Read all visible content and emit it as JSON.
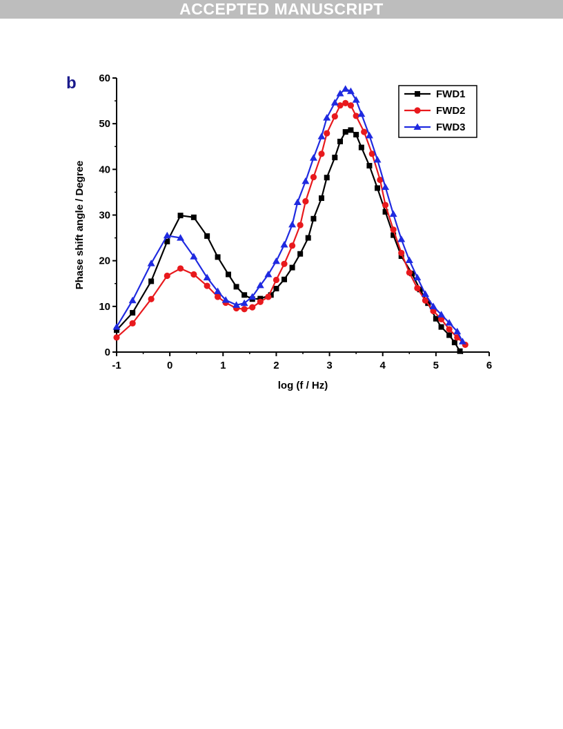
{
  "header": {
    "banner": "ACCEPTED MANUSCRIPT"
  },
  "colors": {
    "banner_bg": "#bdbdbd",
    "panel_letter": "#1a1a8c"
  },
  "chart_data": {
    "type": "line",
    "panel_label": "b",
    "xlabel": "log (f / Hz)",
    "ylabel": "Phase shift angle / Degree",
    "xlim": [
      -1,
      6
    ],
    "ylim": [
      0,
      60
    ],
    "xticks": [
      "-1",
      "0",
      "1",
      "2",
      "3",
      "4",
      "5",
      "6"
    ],
    "yticks": [
      "0",
      "10",
      "20",
      "30",
      "40",
      "50",
      "60"
    ],
    "grid": false,
    "legend_position": "top-right",
    "series": [
      {
        "name": "FWD1",
        "color": "#000000",
        "marker": "square",
        "x": [
          -1.0,
          -0.7,
          -0.35,
          -0.05,
          0.2,
          0.45,
          0.7,
          0.9,
          1.1,
          1.25,
          1.4,
          1.55,
          1.7,
          1.9,
          2.0,
          2.15,
          2.3,
          2.45,
          2.6,
          2.7,
          2.85,
          2.95,
          3.1,
          3.2,
          3.3,
          3.4,
          3.5,
          3.6,
          3.75,
          3.9,
          4.05,
          4.2,
          4.35,
          4.55,
          4.7,
          4.85,
          5.0,
          5.1,
          5.25,
          5.35,
          5.45
        ],
        "y": [
          4.8,
          8.6,
          15.5,
          24.2,
          29.9,
          29.5,
          25.4,
          20.8,
          17.0,
          14.3,
          12.5,
          11.6,
          11.7,
          12.5,
          13.9,
          15.9,
          18.5,
          21.5,
          25.0,
          29.2,
          33.7,
          38.2,
          42.6,
          46.1,
          48.2,
          48.6,
          47.6,
          44.8,
          40.8,
          35.9,
          30.7,
          25.6,
          21.0,
          17.2,
          13.7,
          10.7,
          7.3,
          5.5,
          3.7,
          2.1,
          0.2
        ]
      },
      {
        "name": "FWD2",
        "color": "#e8191d",
        "marker": "circle",
        "x": [
          -1.0,
          -0.7,
          -0.35,
          -0.05,
          0.2,
          0.45,
          0.7,
          0.9,
          1.05,
          1.25,
          1.4,
          1.55,
          1.7,
          1.85,
          2.0,
          2.15,
          2.3,
          2.45,
          2.55,
          2.7,
          2.85,
          2.95,
          3.1,
          3.2,
          3.3,
          3.4,
          3.5,
          3.65,
          3.8,
          3.95,
          4.05,
          4.2,
          4.35,
          4.5,
          4.65,
          4.8,
          4.95,
          5.1,
          5.25,
          5.4,
          5.55
        ],
        "y": [
          3.2,
          6.3,
          11.6,
          16.7,
          18.3,
          17.0,
          14.5,
          12.1,
          10.8,
          9.6,
          9.4,
          9.8,
          11.0,
          12.1,
          15.8,
          19.3,
          23.3,
          27.8,
          33.0,
          38.3,
          43.4,
          47.9,
          51.6,
          54.0,
          54.5,
          54.0,
          51.7,
          48.2,
          43.4,
          37.7,
          32.2,
          26.8,
          21.7,
          17.4,
          14.0,
          11.3,
          9.0,
          7.2,
          5.0,
          3.2,
          1.6
        ]
      },
      {
        "name": "FWD3",
        "color": "#1f2ae0",
        "marker": "triangle",
        "x": [
          -1.0,
          -0.7,
          -0.35,
          -0.05,
          0.2,
          0.45,
          0.7,
          0.9,
          1.05,
          1.25,
          1.4,
          1.55,
          1.7,
          1.85,
          2.0,
          2.15,
          2.3,
          2.4,
          2.55,
          2.7,
          2.85,
          2.95,
          3.1,
          3.2,
          3.3,
          3.4,
          3.5,
          3.6,
          3.75,
          3.9,
          4.05,
          4.2,
          4.35,
          4.5,
          4.65,
          4.8,
          4.95,
          5.1,
          5.25,
          5.4,
          5.5
        ],
        "y": [
          5.5,
          11.3,
          19.4,
          25.5,
          25.0,
          20.9,
          16.3,
          13.3,
          11.4,
          10.3,
          10.7,
          12.1,
          14.6,
          17.0,
          19.9,
          23.5,
          27.9,
          32.8,
          37.4,
          42.5,
          47.2,
          51.3,
          54.6,
          56.6,
          57.6,
          57.1,
          55.2,
          52.1,
          47.4,
          42.1,
          36.1,
          30.2,
          24.7,
          20.1,
          16.3,
          12.7,
          10.0,
          8.2,
          6.4,
          4.5,
          2.3
        ]
      }
    ]
  }
}
